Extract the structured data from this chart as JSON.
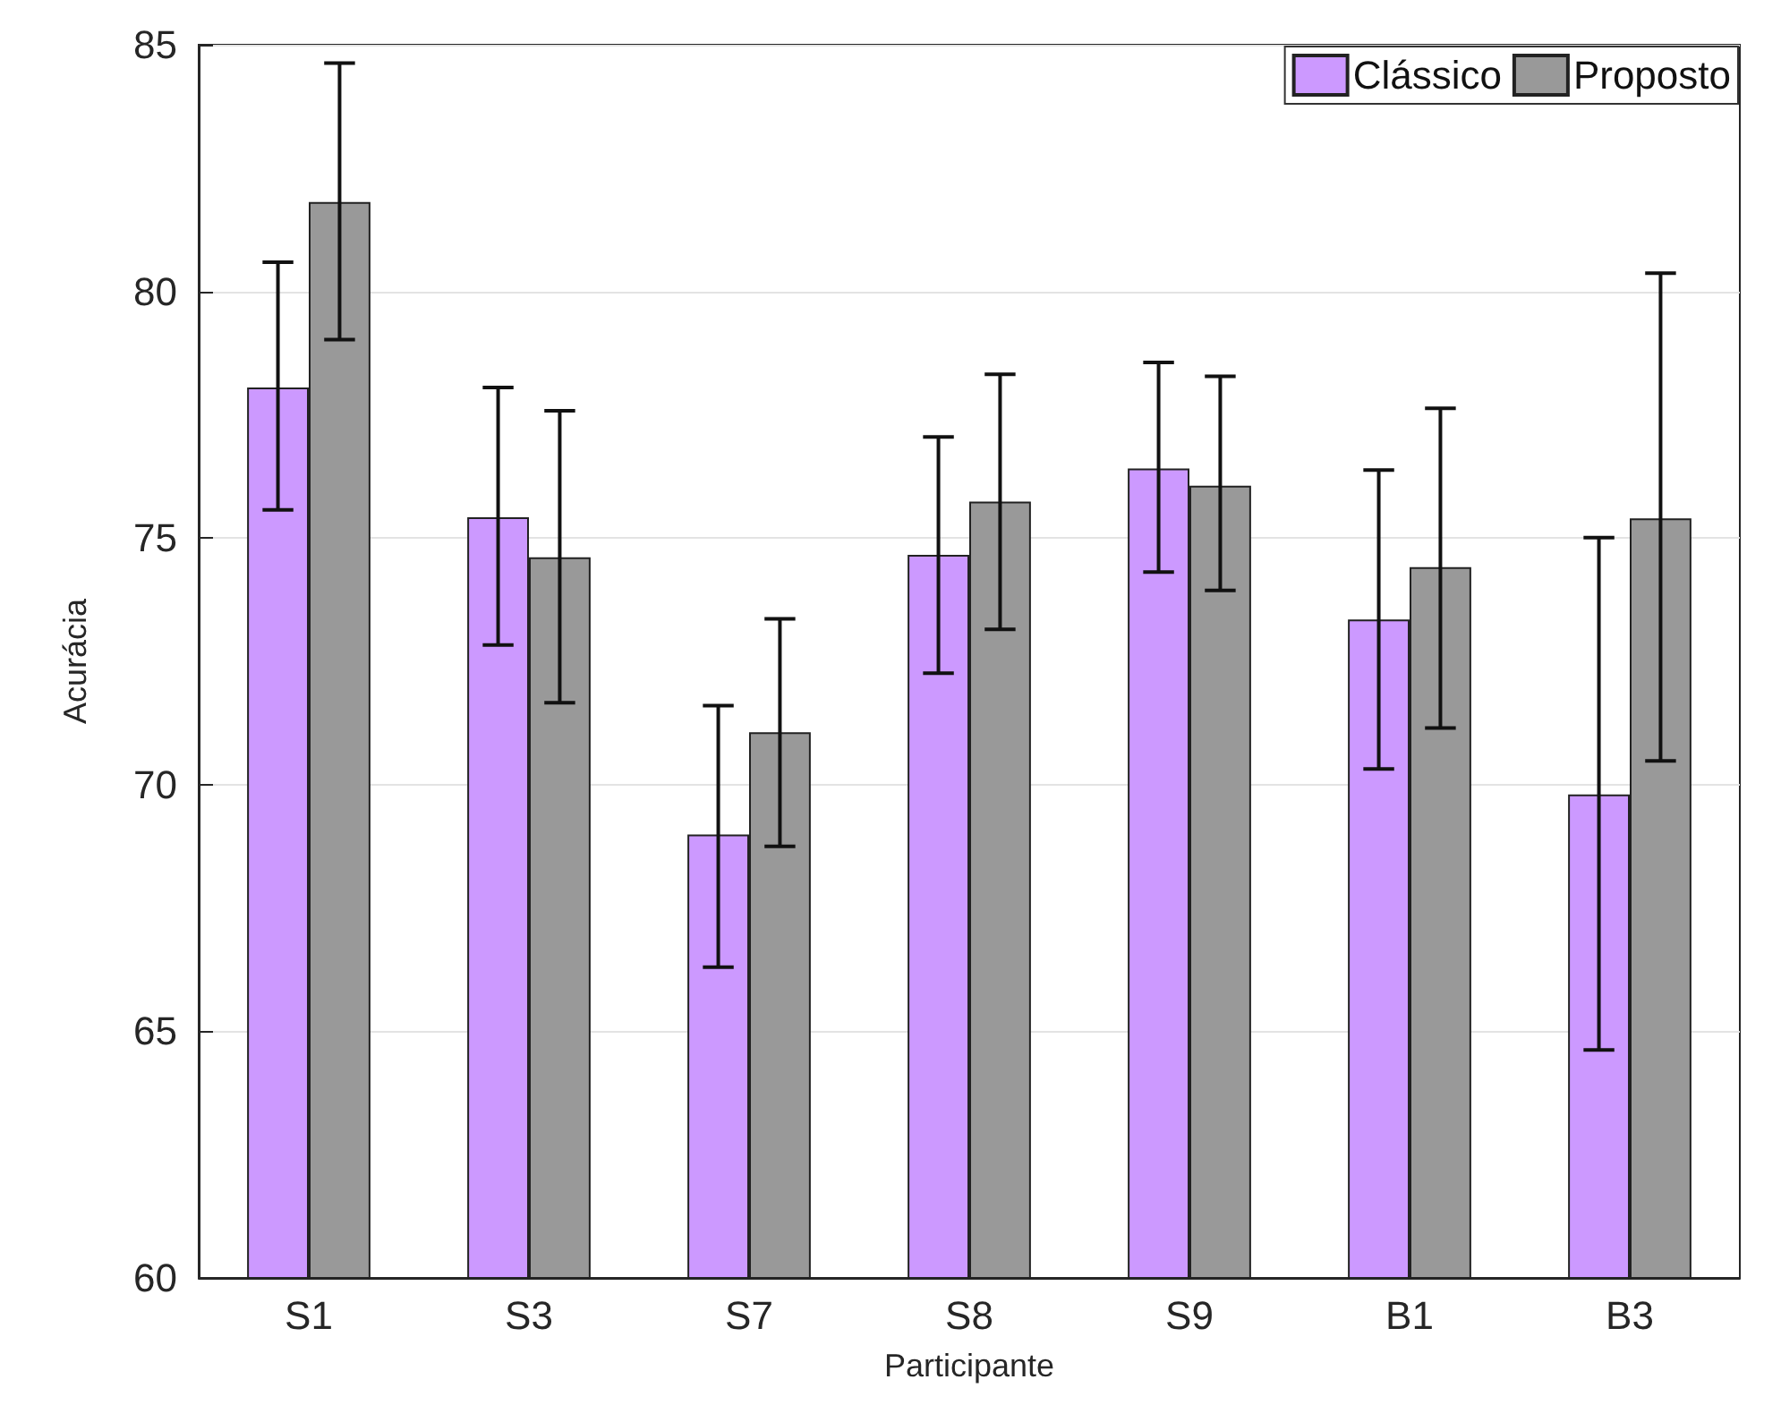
{
  "chart_data": {
    "type": "bar",
    "xlabel": "Participante",
    "ylabel": "Acurácia",
    "categories": [
      "S1",
      "S3",
      "S7",
      "S8",
      "S9",
      "B1",
      "B3"
    ],
    "series": [
      {
        "name": "Clássico",
        "color": "#cc99ff",
        "values": [
          78.05,
          75.42,
          68.99,
          74.66,
          76.41,
          73.35,
          69.8
        ],
        "errors": [
          [
            75.57,
            80.59
          ],
          [
            72.83,
            78.05
          ],
          [
            66.3,
            71.6
          ],
          [
            72.26,
            77.05
          ],
          [
            74.31,
            78.56
          ],
          [
            70.32,
            76.38
          ],
          [
            64.62,
            75.01
          ]
        ]
      },
      {
        "name": "Proposto",
        "color": "#999999",
        "values": [
          81.81,
          74.61,
          71.06,
          75.74,
          76.06,
          74.41,
          75.4
        ],
        "errors": [
          [
            79.02,
            84.63
          ],
          [
            71.66,
            77.58
          ],
          [
            68.75,
            73.36
          ],
          [
            73.15,
            78.32
          ],
          [
            73.94,
            78.28
          ],
          [
            71.15,
            77.63
          ],
          [
            70.48,
            80.37
          ]
        ]
      }
    ],
    "ylim": [
      60,
      85
    ],
    "yticks": [
      60,
      65,
      70,
      75,
      80,
      85
    ],
    "grid": "y",
    "legend": "top right"
  }
}
